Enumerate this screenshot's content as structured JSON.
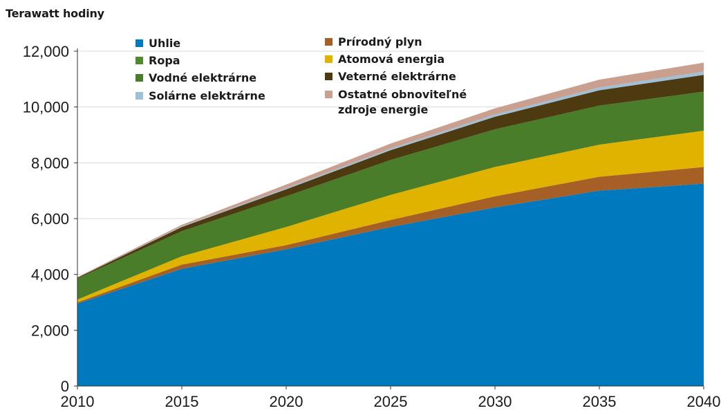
{
  "chart_data": {
    "type": "area",
    "stacked": true,
    "ylabel": "Terawatt hodiny",
    "xlabel": "",
    "ylim": [
      0,
      12000
    ],
    "yticks": [
      "0",
      "2,000",
      "4,000",
      "6,000",
      "8,000",
      "10,000",
      "12,000"
    ],
    "ytick_values": [
      0,
      2000,
      4000,
      6000,
      8000,
      10000,
      12000
    ],
    "x": [
      2010,
      2015,
      2020,
      2025,
      2030,
      2035,
      2040
    ],
    "xticks": [
      "2010",
      "2015",
      "2020",
      "2025",
      "2030",
      "2035",
      "2040"
    ],
    "grid": true,
    "legend_position": "top-center",
    "series": [
      {
        "key": "uhlie",
        "name": "Uhlie",
        "color": "#0079bf",
        "values": [
          2950,
          4200,
          4900,
          5700,
          6400,
          7000,
          7250
        ]
      },
      {
        "key": "plyn",
        "name": "Prírodný plyn",
        "color": "#a65f24",
        "values": [
          50,
          150,
          150,
          250,
          400,
          500,
          600
        ]
      },
      {
        "key": "ropa",
        "name": "Ropa",
        "color": "#4f8a2e",
        "values": [
          0,
          0,
          0,
          0,
          0,
          0,
          0
        ]
      },
      {
        "key": "atom",
        "name": "Atomová energia",
        "color": "#e0b300",
        "values": [
          100,
          300,
          650,
          900,
          1050,
          1150,
          1300
        ]
      },
      {
        "key": "voda",
        "name": "Vodné elektrárne",
        "color": "#4a7d2a",
        "values": [
          750,
          900,
          1100,
          1250,
          1350,
          1400,
          1400
        ]
      },
      {
        "key": "vietor",
        "name": "Veterné elektrárne",
        "color": "#4d3a10",
        "values": [
          30,
          150,
          250,
          350,
          450,
          550,
          600
        ]
      },
      {
        "key": "slnko",
        "name": "Solárne elektrárne",
        "color": "#9fc0d6",
        "values": [
          5,
          20,
          40,
          60,
          80,
          100,
          120
        ]
      },
      {
        "key": "ostatne",
        "name": "Ostatné obnoviteľné zdroje energie",
        "color": "#c9a08f",
        "values": [
          20,
          60,
          130,
          180,
          220,
          280,
          320
        ]
      }
    ],
    "legend": [
      {
        "key": "uhlie",
        "label": "Uhlie"
      },
      {
        "key": "ropa",
        "label": "Ropa"
      },
      {
        "key": "voda",
        "label": "Vodné elektrárne"
      },
      {
        "key": "slnko",
        "label": "Solárne elektrárne"
      },
      {
        "key": "plyn",
        "label": "Prírodný plyn"
      },
      {
        "key": "atom",
        "label": "Atomová energia"
      },
      {
        "key": "vietor",
        "label": "Veterné elektrárne"
      },
      {
        "key": "ostatne",
        "label_line1": "Ostatné obnoviteľné",
        "label_line2": "zdroje energie"
      }
    ]
  }
}
